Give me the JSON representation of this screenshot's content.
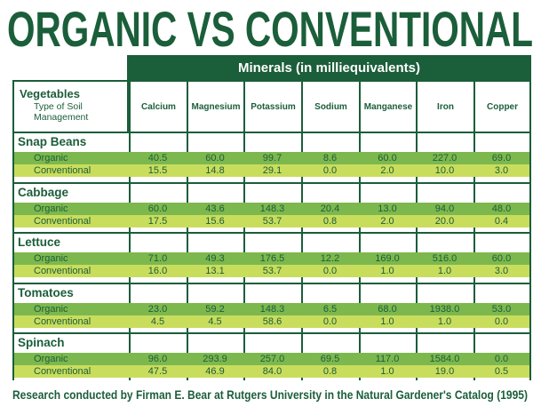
{
  "title": "ORGANIC VS CONVENTIONAL",
  "footer": "Research conducted by Firman E. Bear at Rutgers University in the Natural Gardener's Catalog (1995)",
  "colors": {
    "dark_green": "#1b5e3a",
    "organic_row": "#7db84e",
    "conventional_row": "#c9dd5d"
  },
  "chart_data": {
    "type": "table",
    "title": "ORGANIC VS CONVENTIONAL",
    "column_group_label": "Minerals (in milliequivalents)",
    "row_header": {
      "main": "Vegetables",
      "sub": "Type of Soil Management"
    },
    "columns": [
      "Calcium",
      "Magnesium",
      "Potassium",
      "Sodium",
      "Manganese",
      "Iron",
      "Copper"
    ],
    "groups": [
      {
        "name": "Snap Beans",
        "rows": [
          {
            "label": "Organic",
            "values": [
              "40.5",
              "60.0",
              "99.7",
              "8.6",
              "60.0",
              "227.0",
              "69.0"
            ]
          },
          {
            "label": "Conventional",
            "values": [
              "15.5",
              "14.8",
              "29.1",
              "0.0",
              "2.0",
              "10.0",
              "3.0"
            ]
          }
        ]
      },
      {
        "name": "Cabbage",
        "rows": [
          {
            "label": "Organic",
            "values": [
              "60.0",
              "43.6",
              "148.3",
              "20.4",
              "13.0",
              "94.0",
              "48.0"
            ]
          },
          {
            "label": "Conventional",
            "values": [
              "17.5",
              "15.6",
              "53.7",
              "0.8",
              "2.0",
              "20.0",
              "0.4"
            ]
          }
        ]
      },
      {
        "name": "Lettuce",
        "rows": [
          {
            "label": "Organic",
            "values": [
              "71.0",
              "49.3",
              "176.5",
              "12.2",
              "169.0",
              "516.0",
              "60.0"
            ]
          },
          {
            "label": "Conventional",
            "values": [
              "16.0",
              "13.1",
              "53.7",
              "0.0",
              "1.0",
              "1.0",
              "3.0"
            ]
          }
        ]
      },
      {
        "name": "Tomatoes",
        "rows": [
          {
            "label": "Organic",
            "values": [
              "23.0",
              "59.2",
              "148.3",
              "6.5",
              "68.0",
              "1938.0",
              "53.0"
            ]
          },
          {
            "label": "Conventional",
            "values": [
              "4.5",
              "4.5",
              "58.6",
              "0.0",
              "1.0",
              "1.0",
              "0.0"
            ]
          }
        ]
      },
      {
        "name": "Spinach",
        "rows": [
          {
            "label": "Organic",
            "values": [
              "96.0",
              "293.9",
              "257.0",
              "69.5",
              "117.0",
              "1584.0",
              "0.0"
            ]
          },
          {
            "label": "Conventional",
            "values": [
              "47.5",
              "46.9",
              "84.0",
              "0.8",
              "1.0",
              "19.0",
              "0.5"
            ]
          }
        ]
      }
    ]
  }
}
